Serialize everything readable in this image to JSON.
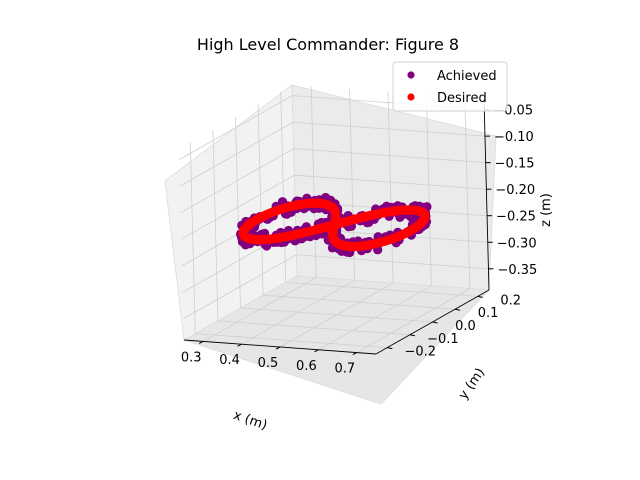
{
  "chart_data": {
    "type": "scatter3d",
    "title": "High Level Commander: Figure 8",
    "xlabel": "x (m)",
    "ylabel": "y (m)",
    "zlabel": "z (m)",
    "xlim": [
      0.25,
      0.75
    ],
    "ylim": [
      -0.25,
      0.25
    ],
    "zlim": [
      -0.39,
      -0.03
    ],
    "xticks": [
      "0.3",
      "0.4",
      "0.5",
      "0.6",
      "0.7"
    ],
    "yticks": [
      "−0.2",
      "−0.1",
      "0.0",
      "0.1",
      "0.2"
    ],
    "zticks": [
      "−0.05",
      "−0.10",
      "−0.15",
      "−0.20",
      "−0.25",
      "−0.30",
      "−0.35"
    ],
    "legend": {
      "position": "upper-right",
      "entries": [
        "Achieved",
        "Desired"
      ]
    },
    "curve": {
      "shape": "figure-8 (lemniscate)",
      "x_center": 0.5,
      "x_amplitude": 0.2,
      "y_center": 0.0,
      "y_amplitude": 0.2,
      "z_value": -0.22
    },
    "series": [
      {
        "name": "Achieved",
        "color": "#800080",
        "jitter": 0.012
      },
      {
        "name": "Desired",
        "color": "#ff0000",
        "jitter": 0.0
      }
    ]
  }
}
